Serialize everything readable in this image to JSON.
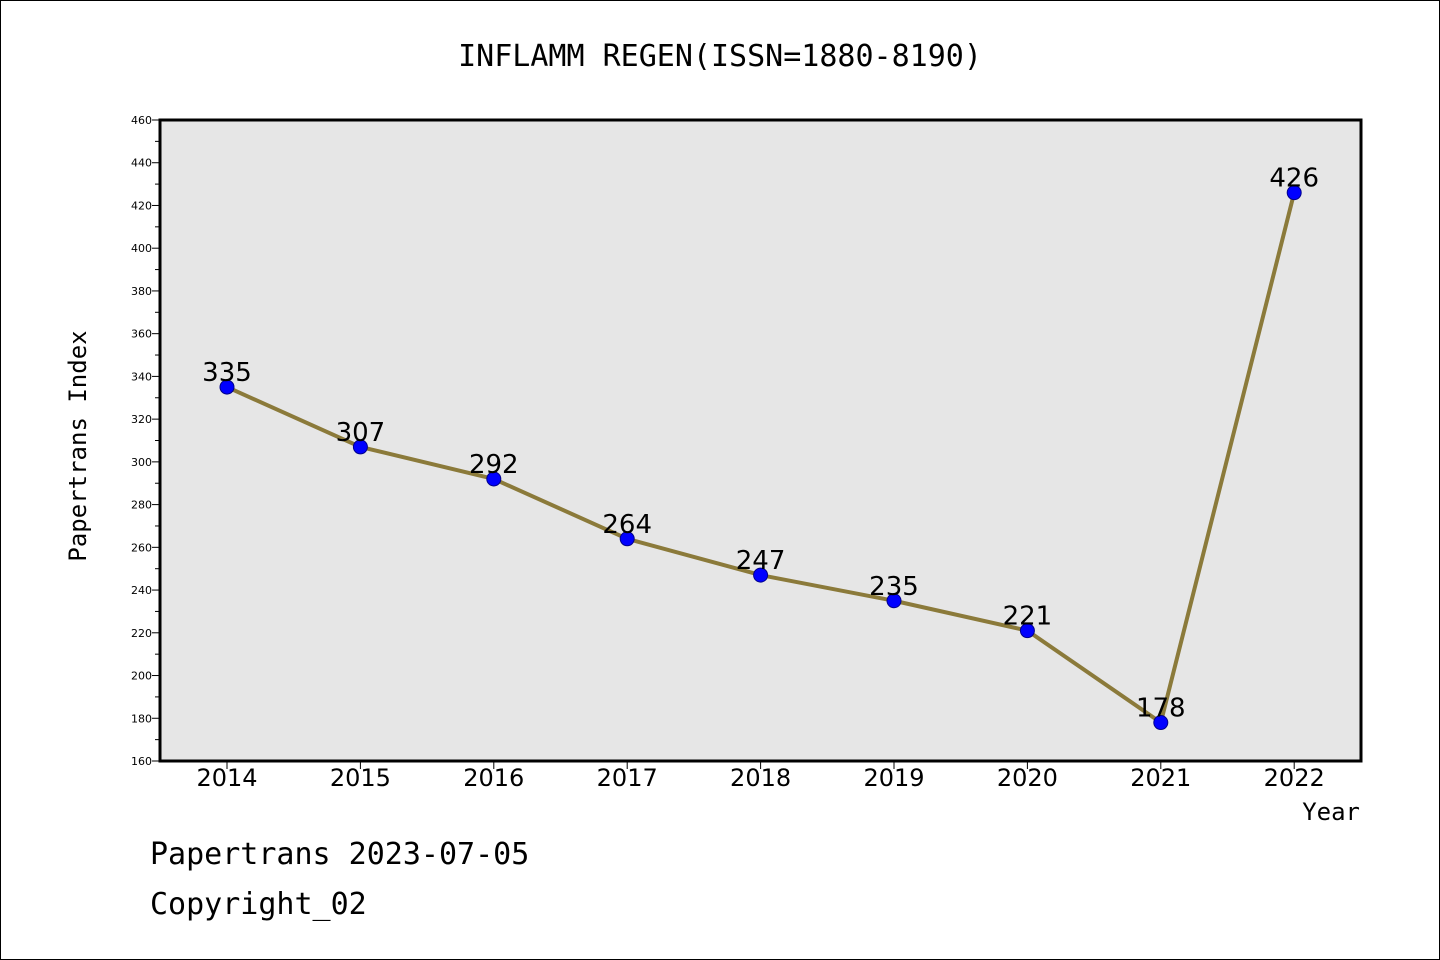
{
  "chart_data": {
    "type": "line",
    "title": "INFLAMM REGEN(ISSN=1880-8190)",
    "xlabel": "Year",
    "ylabel": "Papertrans Index",
    "categories": [
      "2014",
      "2015",
      "2016",
      "2017",
      "2018",
      "2019",
      "2020",
      "2021",
      "2022"
    ],
    "series": [
      {
        "values": [
          335,
          307,
          292,
          264,
          247,
          235,
          221,
          178,
          426
        ]
      }
    ],
    "data_labels": [
      "335",
      "307",
      "292",
      "264",
      "247",
      "235",
      "221",
      "178",
      "426"
    ],
    "ylim": [
      160,
      460
    ],
    "yticks": [
      "160",
      "180",
      "200",
      "220",
      "240",
      "260",
      "280",
      "300",
      "320",
      "340",
      "360",
      "380",
      "400",
      "420",
      "440",
      "460"
    ],
    "grid": false,
    "legend": "none",
    "colors": {
      "line": "#8b7a3a",
      "marker": "#0000ff",
      "plot_background": "#e6e6e6"
    }
  },
  "footer": {
    "line1": "Papertrans 2023-07-05",
    "line2": "Copyright_02"
  }
}
